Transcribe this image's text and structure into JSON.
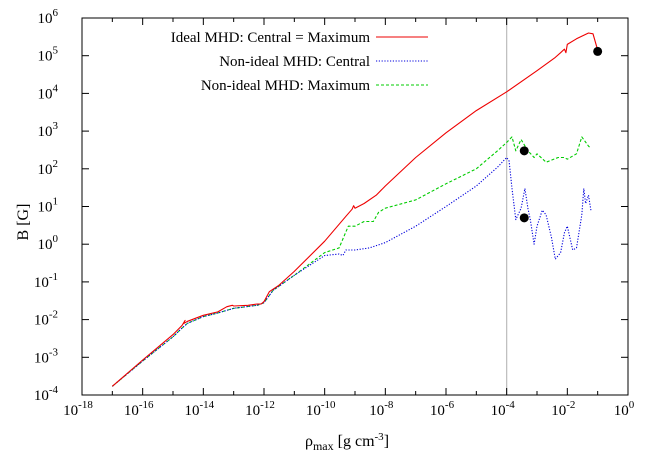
{
  "chart_data": {
    "type": "line",
    "xlabel": "ρmax [g cm-3]",
    "xlabel_parts": {
      "symbol": "ρ",
      "sub": "max",
      "units": " [g cm",
      "units_exp": "-3",
      "units_end": "]"
    },
    "ylabel": "B [G]",
    "xscale": "log",
    "yscale": "log",
    "xlim": [
      1e-18,
      1
    ],
    "ylim": [
      0.0001,
      1000000.0
    ],
    "xticks": [
      {
        "base": "10",
        "exp": "-18",
        "value": 1e-18
      },
      {
        "base": "10",
        "exp": "-16",
        "value": 1e-16
      },
      {
        "base": "10",
        "exp": "-14",
        "value": 1e-14
      },
      {
        "base": "10",
        "exp": "-12",
        "value": 1e-12
      },
      {
        "base": "10",
        "exp": "-10",
        "value": 1e-10
      },
      {
        "base": "10",
        "exp": "-8",
        "value": 1e-08
      },
      {
        "base": "10",
        "exp": "-6",
        "value": 1e-06
      },
      {
        "base": "10",
        "exp": "-4",
        "value": 0.0001
      },
      {
        "base": "10",
        "exp": "-2",
        "value": 0.01
      },
      {
        "base": "10",
        "exp": "0",
        "value": 1
      }
    ],
    "yticks": [
      {
        "base": "10",
        "exp": "-4",
        "value": 0.0001
      },
      {
        "base": "10",
        "exp": "-3",
        "value": 0.001
      },
      {
        "base": "10",
        "exp": "-2",
        "value": 0.01
      },
      {
        "base": "10",
        "exp": "-1",
        "value": 0.1
      },
      {
        "base": "10",
        "exp": "0",
        "value": 1
      },
      {
        "base": "10",
        "exp": "1",
        "value": 10
      },
      {
        "base": "10",
        "exp": "2",
        "value": 100
      },
      {
        "base": "10",
        "exp": "3",
        "value": 1000
      },
      {
        "base": "10",
        "exp": "4",
        "value": 10000.0
      },
      {
        "base": "10",
        "exp": "5",
        "value": 100000.0
      },
      {
        "base": "10",
        "exp": "6",
        "value": 1000000.0
      }
    ],
    "legend_position": "top-left",
    "reference_lines": [
      {
        "orientation": "vertical",
        "x": 0.0001,
        "color": "#bbbbbb"
      }
    ],
    "series": [
      {
        "name": "Ideal MHD: Central = Maximum",
        "color": "#ee0000",
        "style": "solid",
        "x": [
          1e-17,
          1e-16,
          1e-15,
          2e-15,
          2.5e-15,
          2.2e-15,
          3e-15,
          1e-14,
          3e-14,
          6e-14,
          9e-14,
          1e-13,
          3e-13,
          6e-13,
          8e-13,
          1e-12,
          1.5e-12,
          3e-12,
          1e-11,
          1e-10,
          5e-10,
          8e-10,
          9e-10,
          1e-09,
          2e-09,
          5e-09,
          1e-08,
          1e-07,
          1e-06,
          1e-05,
          0.0001,
          0.001,
          0.004,
          0.006,
          0.008,
          0.009,
          0.01,
          0.02,
          0.035,
          0.05,
          0.07,
          0.1
        ],
        "y": [
          0.00017,
          0.00085,
          0.004,
          0.007,
          0.0095,
          0.0078,
          0.009,
          0.013,
          0.016,
          0.022,
          0.024,
          0.023,
          0.024,
          0.026,
          0.026,
          0.03,
          0.055,
          0.08,
          0.19,
          1.2,
          5.5,
          8.5,
          10.5,
          9,
          12,
          20,
          35,
          200,
          900,
          3500,
          11000,
          40000,
          90000,
          120000,
          150000,
          120000,
          200000,
          280000,
          350000,
          400000,
          380000,
          140000
        ]
      },
      {
        "name": "Non-ideal MHD: Central",
        "color": "#0000dd",
        "style": "dotted",
        "x": [
          1e-17,
          1e-16,
          1e-15,
          2e-15,
          3e-15,
          1e-14,
          3e-14,
          1e-13,
          6e-13,
          1e-12,
          2e-12,
          1e-11,
          1e-10,
          3e-10,
          4e-10,
          5e-10,
          1e-09,
          3e-09,
          1e-08,
          1e-07,
          1e-06,
          1e-05,
          5e-05,
          0.0001,
          0.00012,
          0.00015,
          0.0002,
          0.0003,
          0.0004,
          0.0005,
          0.0006,
          0.0008,
          0.001,
          0.0015,
          0.002,
          0.003,
          0.004,
          0.006,
          0.008,
          0.01,
          0.015,
          0.02,
          0.03,
          0.035,
          0.04,
          0.05,
          0.06
        ],
        "y": [
          0.00017,
          0.0008,
          0.0035,
          0.006,
          0.008,
          0.012,
          0.015,
          0.02,
          0.024,
          0.028,
          0.06,
          0.15,
          0.5,
          0.55,
          0.5,
          0.7,
          0.7,
          0.8,
          1.1,
          3,
          10,
          35,
          110,
          200,
          160,
          30,
          4.5,
          9,
          30,
          9,
          4.5,
          1,
          3,
          8,
          6,
          1.5,
          0.4,
          0.6,
          2,
          3,
          0.7,
          0.8,
          6,
          30,
          12,
          20,
          8
        ]
      },
      {
        "name": "Non-ideal MHD: Maximum",
        "color": "#00cc00",
        "style": "dashed",
        "x": [
          1e-17,
          1e-16,
          1e-15,
          2e-15,
          3e-15,
          1e-14,
          3e-14,
          1e-13,
          6e-13,
          1e-12,
          2e-12,
          1e-11,
          1e-10,
          3e-10,
          6e-10,
          1e-09,
          2e-09,
          4e-09,
          6e-09,
          1e-08,
          1e-07,
          1e-06,
          1e-05,
          5e-05,
          0.0001,
          0.00015,
          0.0002,
          0.0003,
          0.0005,
          0.0008,
          0.001,
          0.002,
          0.003,
          0.005,
          0.008,
          0.01,
          0.02,
          0.03,
          0.05,
          0.06
        ],
        "y": [
          0.00017,
          0.0008,
          0.0035,
          0.006,
          0.008,
          0.012,
          0.015,
          0.02,
          0.024,
          0.028,
          0.06,
          0.15,
          0.6,
          0.8,
          3,
          3,
          4,
          4,
          7,
          9,
          15,
          40,
          100,
          300,
          500,
          700,
          300,
          600,
          300,
          200,
          250,
          150,
          170,
          200,
          200,
          180,
          250,
          700,
          400,
          350
        ]
      }
    ],
    "markers": [
      {
        "x": 0.1,
        "y": 130000.0
      },
      {
        "x": 0.00038,
        "y": 300
      },
      {
        "x": 0.00038,
        "y": 5
      }
    ]
  }
}
